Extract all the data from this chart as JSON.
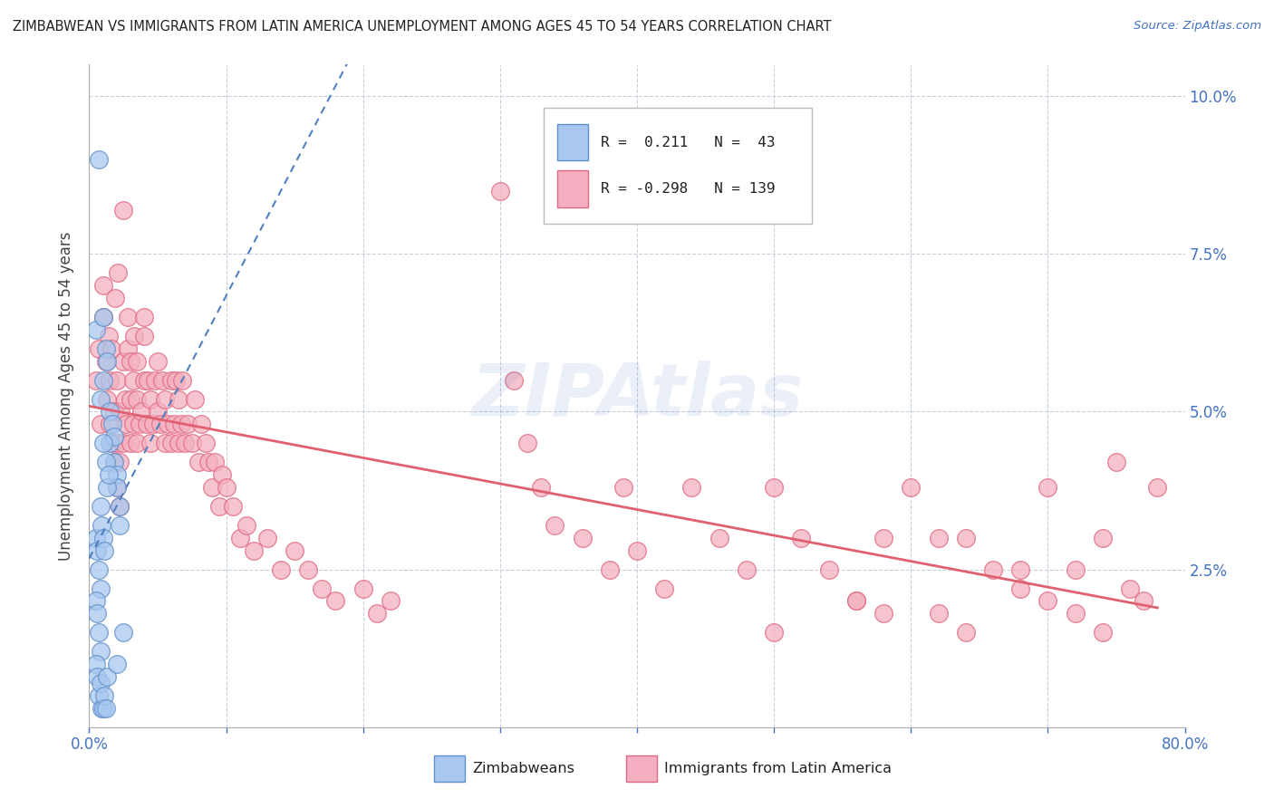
{
  "title": "ZIMBABWEAN VS IMMIGRANTS FROM LATIN AMERICA UNEMPLOYMENT AMONG AGES 45 TO 54 YEARS CORRELATION CHART",
  "source": "Source: ZipAtlas.com",
  "ylabel": "Unemployment Among Ages 45 to 54 years",
  "xlim": [
    0.0,
    0.8
  ],
  "ylim": [
    0.0,
    0.105
  ],
  "blue_color": "#A8C8F0",
  "blue_edge_color": "#6090C8",
  "pink_color": "#F4B0C0",
  "pink_edge_color": "#E06880",
  "blue_line_color": "#5080C0",
  "pink_line_color": "#E06070",
  "watermark": "ZIPAtlas",
  "blue_R": 0.211,
  "blue_N": 43,
  "pink_R": -0.298,
  "pink_N": 139,
  "grid_color": "#C8D0DC",
  "tick_color": "#4472C4",
  "title_color": "#222222",
  "source_color": "#4472C4",
  "ylabel_color": "#444444"
}
